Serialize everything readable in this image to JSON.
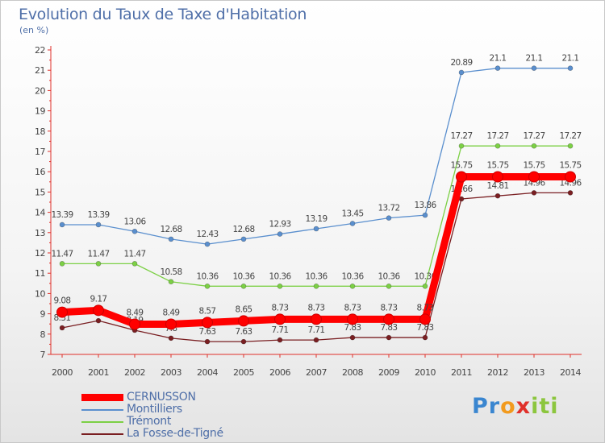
{
  "title": "Evolution du Taux de Taxe d'Habitation",
  "unit_label": "(en %)",
  "brand": {
    "parts": [
      "Pr",
      "o",
      "x",
      "iti"
    ],
    "colors": [
      "#3a86d0",
      "#f29a1d",
      "#e0302a",
      "#8cc63e"
    ]
  },
  "chart_data": {
    "type": "line",
    "title": "Evolution du Taux de Taxe d'Habitation",
    "ylabel": "(en %)",
    "xlabel": "",
    "ylim": [
      7,
      22
    ],
    "yticks": [
      7,
      8,
      9,
      10,
      11,
      12,
      13,
      14,
      15,
      16,
      17,
      18,
      19,
      20,
      21,
      22
    ],
    "x": [
      "2000",
      "2001",
      "2002",
      "2003",
      "2004",
      "2005",
      "2006",
      "2007",
      "2008",
      "2009",
      "2010",
      "2011",
      "2012",
      "2013",
      "2014"
    ],
    "grid": false,
    "legend_position": "bottom-left",
    "series": [
      {
        "name": "Montilliers",
        "color": "#5a8fce",
        "values": [
          13.39,
          13.39,
          13.06,
          12.68,
          12.43,
          12.68,
          12.93,
          13.19,
          13.45,
          13.72,
          13.86,
          20.89,
          21.1,
          21.1,
          21.1
        ],
        "labels": [
          "13.39",
          "13.39",
          "13.06",
          "12.68",
          "12.43",
          "12.68",
          "12.93",
          "13.19",
          "13.45",
          "13.72",
          "13.86",
          "20.89",
          "21.1",
          "21.1",
          "21.1"
        ]
      },
      {
        "name": "Trémont",
        "color": "#7cd045",
        "values": [
          11.47,
          11.47,
          11.47,
          10.58,
          10.36,
          10.36,
          10.36,
          10.36,
          10.36,
          10.36,
          10.36,
          17.27,
          17.27,
          17.27,
          17.27
        ],
        "labels": [
          "11.47",
          "11.47",
          "11.47",
          "10.58",
          "10.36",
          "10.36",
          "10.36",
          "10.36",
          "10.36",
          "10.36",
          "10.36",
          "17.27",
          "17.27",
          "17.27",
          "17.27"
        ]
      },
      {
        "name": "La Fosse-de-Tigné",
        "color": "#7a1f22",
        "values": [
          8.31,
          8.66,
          8.19,
          7.8,
          7.63,
          7.63,
          7.71,
          7.71,
          7.83,
          7.83,
          7.83,
          14.66,
          14.81,
          14.96,
          14.96
        ],
        "labels": [
          "8.31",
          "",
          "8.19",
          "7.8",
          "7.63",
          "7.63",
          "7.71",
          "7.71",
          "7.83",
          "7.83",
          "7.83",
          "14.66",
          "14.81",
          "14.96",
          "14.96"
        ]
      },
      {
        "name": "CERNUSSON",
        "color": "#ff0000",
        "values": [
          9.08,
          9.17,
          8.49,
          8.49,
          8.57,
          8.65,
          8.73,
          8.73,
          8.73,
          8.73,
          8.73,
          15.75,
          15.75,
          15.75,
          15.75
        ],
        "labels": [
          "9.08",
          "9.17",
          "8.49",
          "8.49",
          "8.57",
          "8.65",
          "8.73",
          "8.73",
          "8.73",
          "8.73",
          "8.73",
          "15.75",
          "15.75",
          "15.75",
          "15.75"
        ]
      }
    ],
    "legend": [
      "CERNUSSON",
      "Montilliers",
      "Trémont",
      "La Fosse-de-Tigné"
    ]
  }
}
